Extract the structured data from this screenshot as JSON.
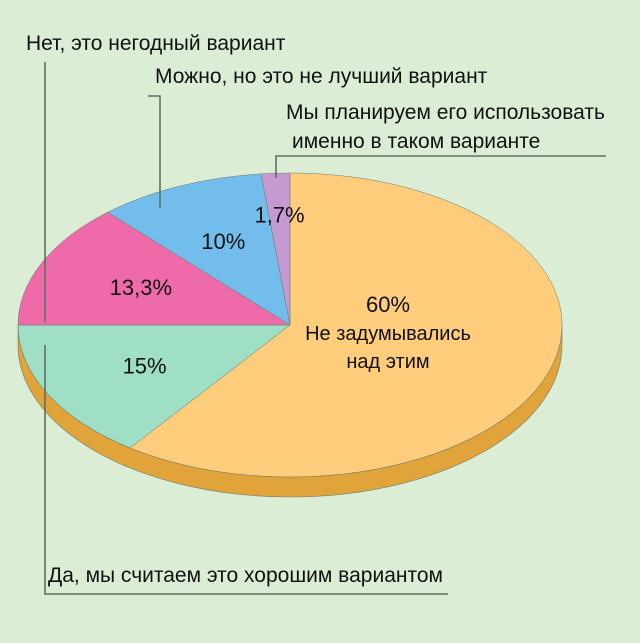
{
  "chart_data": {
    "type": "pie",
    "style": "3d",
    "slices": [
      {
        "category": "Не задумывались над этим",
        "value": 60,
        "value_label": "60%",
        "inside_lines": [
          "Не задумывались",
          "над этим"
        ],
        "color": "#ffcd7c"
      },
      {
        "category": "Да, мы считаем это хорошим вариантом",
        "value": 15,
        "value_label": "15%",
        "color": "#9edfc6"
      },
      {
        "category": "Нет, это негодный вариант",
        "value": 13.3,
        "value_label": "13,3%",
        "color": "#ee6aa8"
      },
      {
        "category": "Можно, но это не лучший вариант",
        "value": 10,
        "value_label": "10%",
        "color": "#72bdeb"
      },
      {
        "category": "Мы планируем его использовать именно в таком варианте",
        "value": 1.7,
        "value_label": "1,7%",
        "color": "#c49ad0"
      }
    ],
    "callouts": [
      {
        "slice": 2,
        "lines": [
          "Нет, это негодный вариант"
        ]
      },
      {
        "slice": 3,
        "lines": [
          "Можно, но это не лучший вариант"
        ]
      },
      {
        "slice": 4,
        "lines": [
          "Мы планируем его использовать",
          "именно в таком варианте"
        ]
      },
      {
        "slice": 1,
        "lines": [
          "Да, мы считаем это хорошим вариантом"
        ]
      }
    ],
    "colors": {
      "background": "#dcedd6",
      "side": "#e0a43a",
      "outline": "#6a7a6a"
    }
  }
}
